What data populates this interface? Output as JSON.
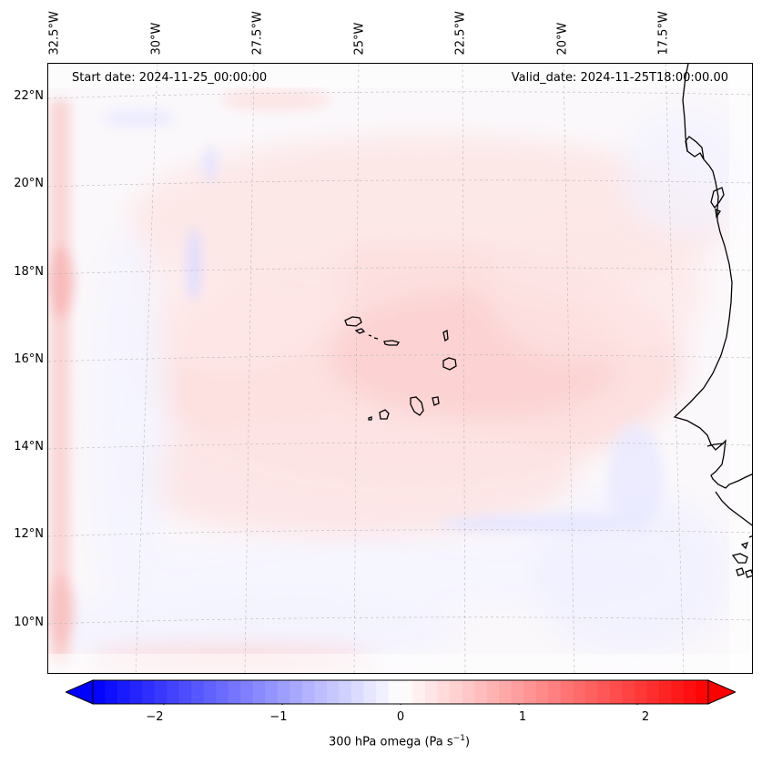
{
  "map": {
    "start_date": "Start date: 2024-11-25_00:00:00",
    "valid_date": "Valid_date: 2024-11-25T18:00:00.00",
    "lon_labels": [
      "32.5°W",
      "30°W",
      "27.5°W",
      "25°W",
      "22.5°W",
      "20°W",
      "17.5°W"
    ],
    "lat_labels": [
      "22°N",
      "20°N",
      "18°N",
      "16°N",
      "14°N",
      "12°N",
      "10°N"
    ],
    "colors": {
      "negative": "#0000ff",
      "zero": "#ffffff",
      "positive": "#ff0000",
      "coast": "#000000",
      "grid": "#b0b0b0"
    }
  },
  "colorbar": {
    "label_prefix": "300 hPa omega (Pa s",
    "label_sup": "−1",
    "label_suffix": ")",
    "ticks": [
      "−2",
      "−1",
      "0",
      "1",
      "2"
    ],
    "range": [
      -2.6,
      2.6
    ],
    "tick_values": [
      -2,
      -1,
      0,
      1,
      2
    ]
  }
}
